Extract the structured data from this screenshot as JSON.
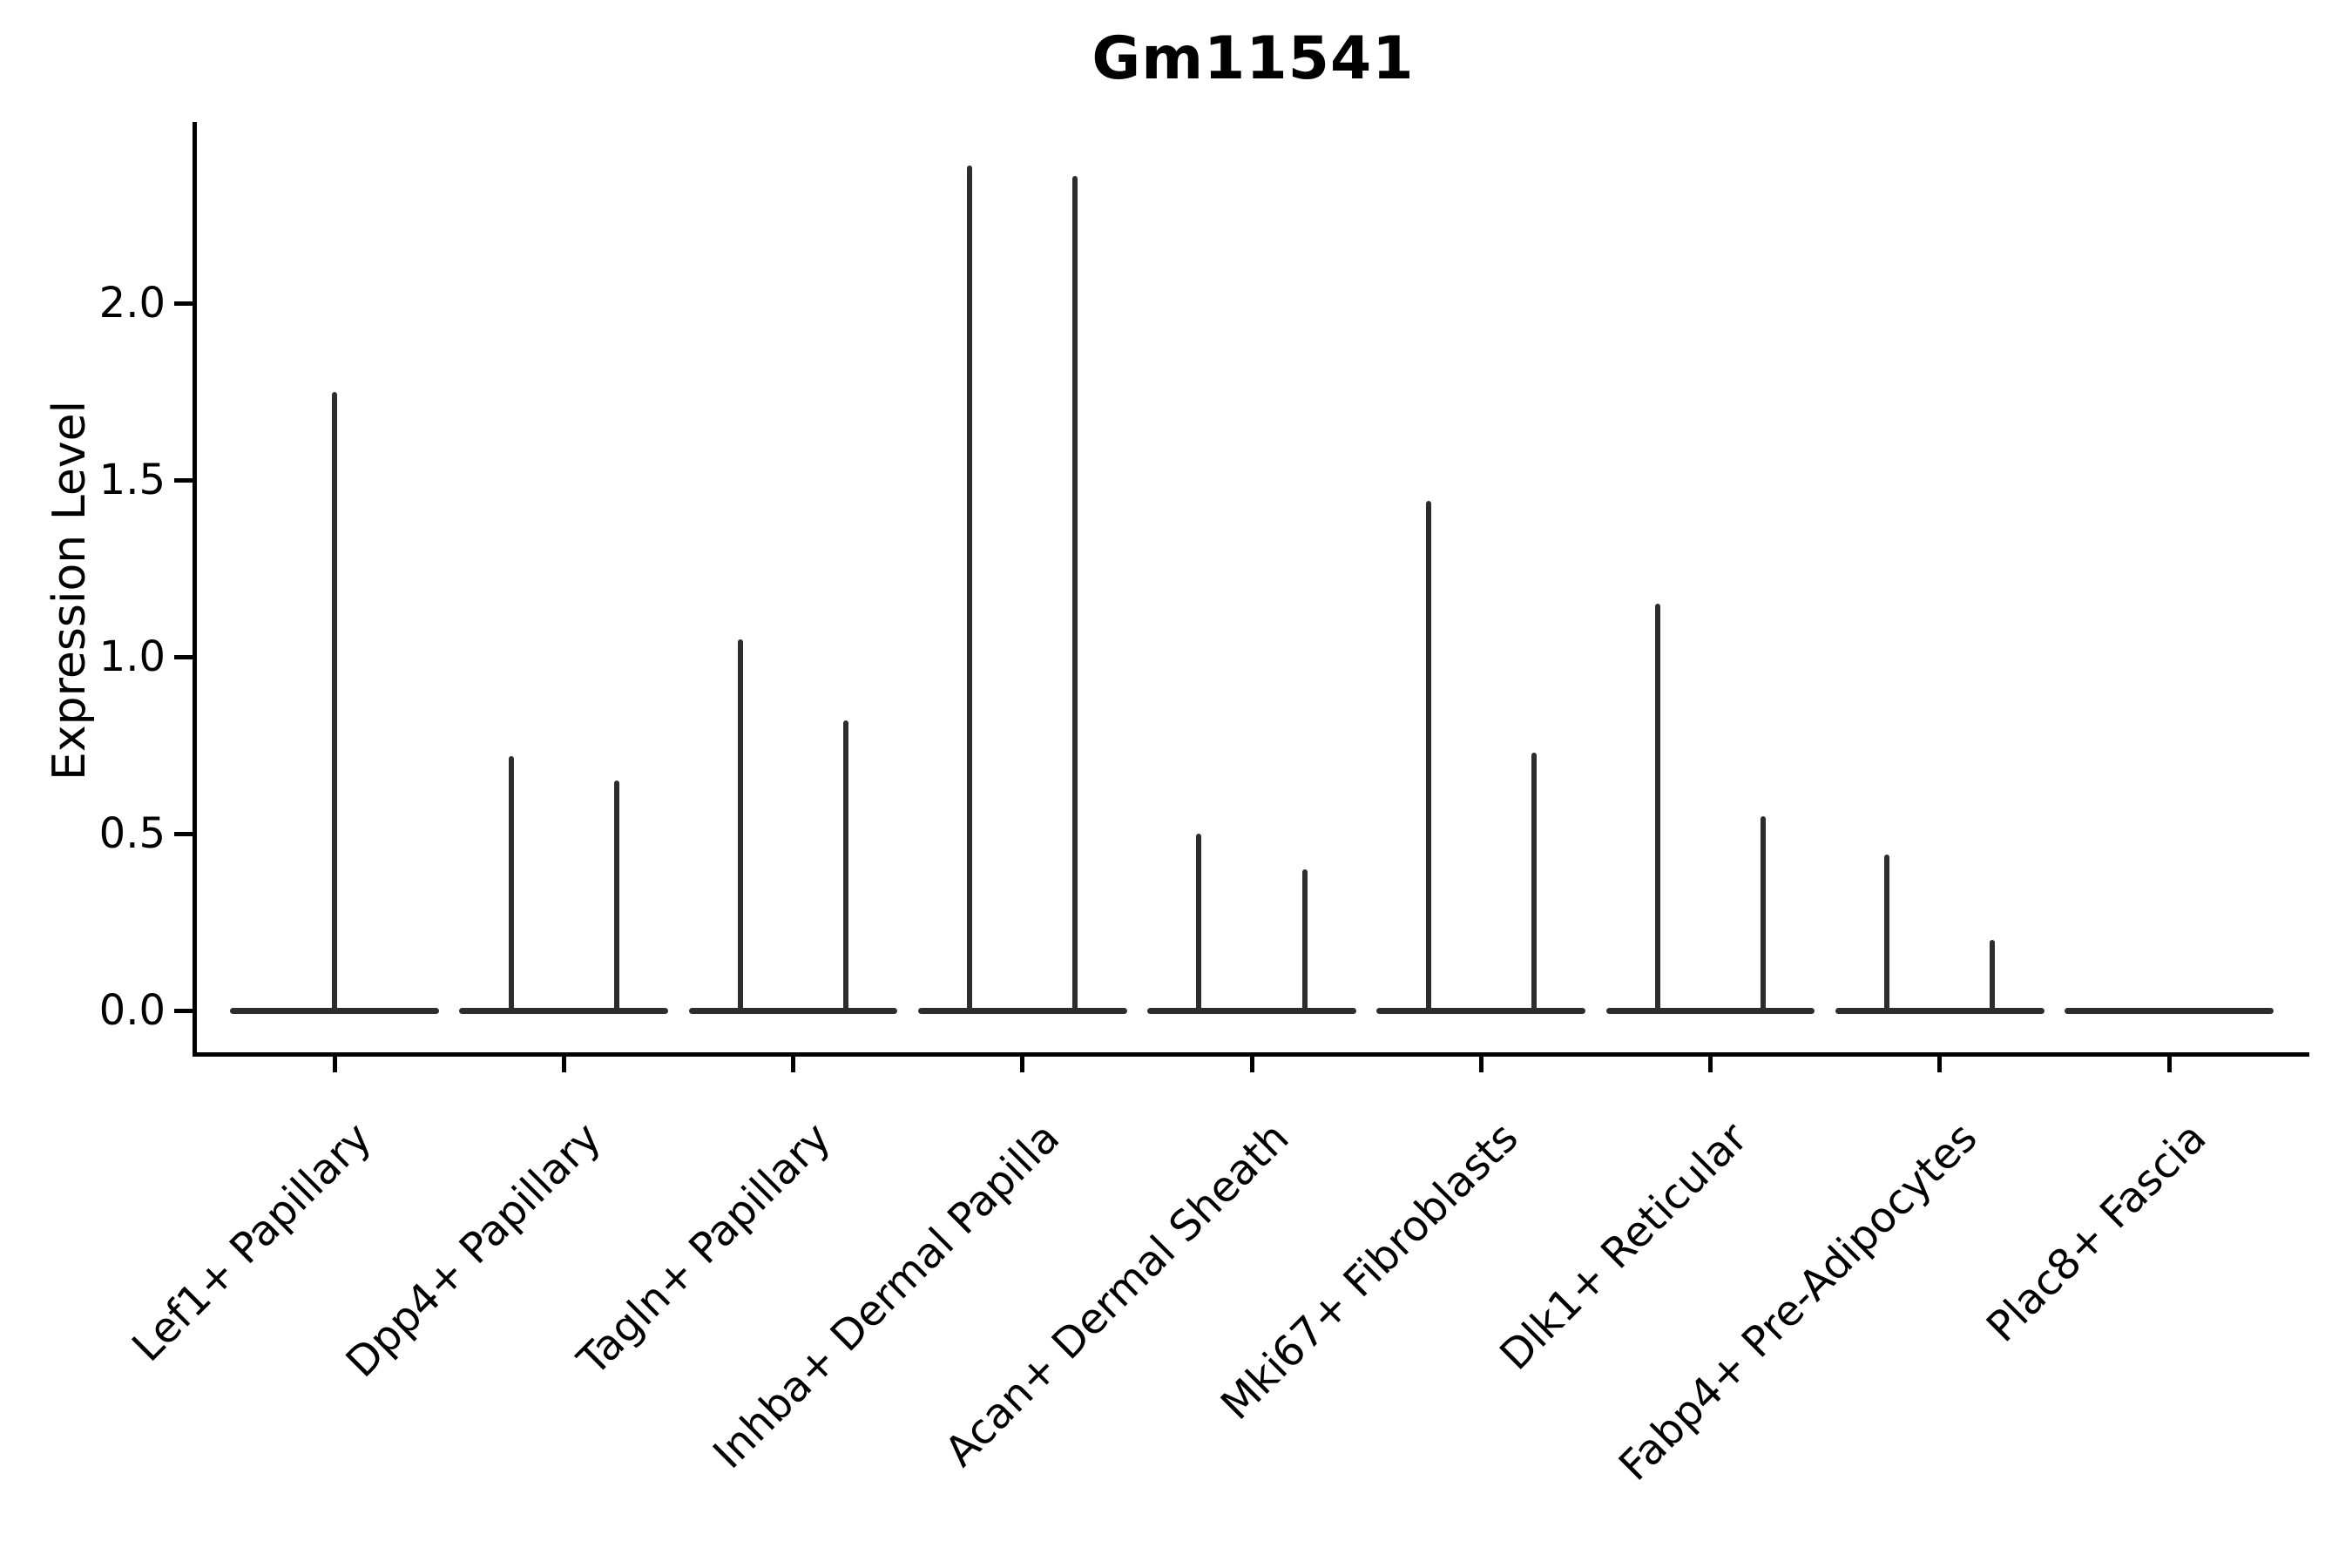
{
  "figure": {
    "title": "Gm11541"
  },
  "chart_data": {
    "type": "violin",
    "title": "Gm11541",
    "xlabel": "",
    "ylabel": "Expression Level",
    "ytick_labels": [
      "0.0",
      "0.5",
      "1.0",
      "1.5",
      "2.0"
    ],
    "ytick_values": [
      0.0,
      0.5,
      1.0,
      1.5,
      2.0
    ],
    "ylim": [
      -0.12,
      2.51
    ],
    "grid": false,
    "legend": "none",
    "line_color": "#2d2d2d",
    "axis_color": "#000000",
    "background_color": "#ffffff",
    "categories": [
      "Lef1+ Papillary",
      "Dpp4+ Papillary",
      "Tagln+ Papillary",
      "Inhba+ Dermal Papilla",
      "Acan+ Dermal Sheath",
      "Mki67+ Fibroblasts",
      "Dlk1+ Reticular",
      "Fabp4+ Pre-Adipocytes",
      "Plac8+ Fascia"
    ],
    "baseline_value": 0.0,
    "baseline_halfwidth_frac": 0.455,
    "violins": [
      {
        "category": "Lef1+ Papillary",
        "spikes": [
          {
            "offset_frac": 0.0,
            "max": 1.75
          }
        ]
      },
      {
        "category": "Dpp4+ Papillary",
        "spikes": [
          {
            "offset_frac": -0.23,
            "max": 0.72
          },
          {
            "offset_frac": 0.23,
            "max": 0.65
          }
        ]
      },
      {
        "category": "Tagln+ Papillary",
        "spikes": [
          {
            "offset_frac": -0.23,
            "max": 1.05
          },
          {
            "offset_frac": 0.23,
            "max": 0.82
          }
        ]
      },
      {
        "category": "Inhba+ Dermal Papilla",
        "spikes": [
          {
            "offset_frac": -0.23,
            "max": 2.39
          },
          {
            "offset_frac": 0.23,
            "max": 2.36
          }
        ]
      },
      {
        "category": "Acan+ Dermal Sheath",
        "spikes": [
          {
            "offset_frac": -0.23,
            "max": 0.5
          },
          {
            "offset_frac": 0.23,
            "max": 0.4
          }
        ]
      },
      {
        "category": "Mki67+ Fibroblasts",
        "spikes": [
          {
            "offset_frac": -0.23,
            "max": 1.44
          },
          {
            "offset_frac": 0.23,
            "max": 0.73
          }
        ]
      },
      {
        "category": "Dlk1+ Reticular",
        "spikes": [
          {
            "offset_frac": -0.23,
            "max": 1.15
          },
          {
            "offset_frac": 0.23,
            "max": 0.55
          }
        ]
      },
      {
        "category": "Fabp4+ Pre-Adipocytes",
        "spikes": [
          {
            "offset_frac": -0.23,
            "max": 0.44
          },
          {
            "offset_frac": 0.23,
            "max": 0.2
          }
        ]
      },
      {
        "category": "Plac8+ Fascia",
        "spikes": []
      }
    ]
  }
}
